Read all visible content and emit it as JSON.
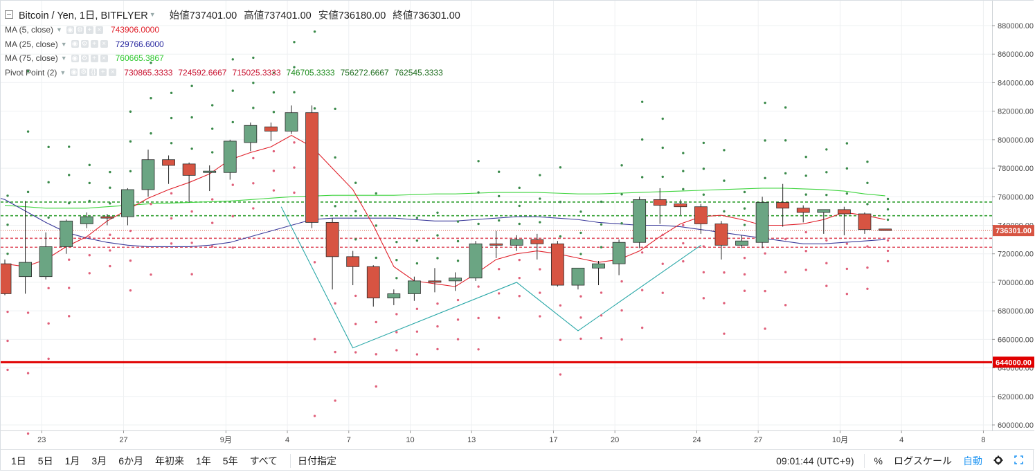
{
  "header": {
    "symbol": "Bitcoin / Yen, 1日, BITFLYER",
    "ohlc": [
      {
        "label": "始値",
        "value": "737401.00"
      },
      {
        "label": "高値",
        "value": "737401.00"
      },
      {
        "label": "安値",
        "value": "736180.00"
      },
      {
        "label": "終値",
        "value": "736301.00"
      }
    ]
  },
  "indicators": [
    {
      "name": "MA (5, close)",
      "values": [
        "743906.0000"
      ],
      "colors": [
        "#e0202a"
      ]
    },
    {
      "name": "MA (25, close)",
      "values": [
        "729766.6000"
      ],
      "colors": [
        "#2b2ba0"
      ]
    },
    {
      "name": "MA (75, close)",
      "values": [
        "760665.3867"
      ],
      "colors": [
        "#2ec82e"
      ]
    },
    {
      "name": "Pivot Point (2)",
      "values": [
        "730865.3333",
        "724592.6667",
        "715025.3333",
        "746705.3333",
        "756272.6667",
        "762545.3333"
      ],
      "colors": [
        "#c8102e",
        "#c8102e",
        "#c8102e",
        "#1a8a1a",
        "#1a6a1a",
        "#1a6a1a"
      ]
    }
  ],
  "colors": {
    "up": "#6ba583",
    "down": "#d75442",
    "ma5": "#e0202a",
    "ma25": "#3a3a9a",
    "ma75": "#3ed43e",
    "support": "#e00000",
    "zigzag": "#2aa8a8"
  },
  "chart_data": {
    "type": "candlestick",
    "x_tick_labels": [
      "23",
      "27",
      "9月",
      "4",
      "7",
      "10",
      "13",
      "17",
      "20",
      "24",
      "27",
      "10月",
      "4",
      "8"
    ],
    "y_tick_labels": [
      "600000.00",
      "620000.00",
      "640000.00",
      "660000.00",
      "680000.00",
      "700000.00",
      "720000.00",
      "740000.00",
      "760000.00",
      "780000.00",
      "800000.00",
      "820000.00",
      "840000.00",
      "860000.00",
      "880000.00"
    ],
    "ylim": [
      595000,
      887000
    ],
    "last_price_label": "736301.00",
    "last_price": 736301,
    "support_label": "644000.00",
    "support_level": 644000,
    "candles": [
      {
        "o": 713000,
        "h": 716000,
        "l": 691000,
        "c": 692000
      },
      {
        "o": 704000,
        "h": 757000,
        "l": 692000,
        "c": 714000
      },
      {
        "o": 704000,
        "h": 735000,
        "l": 702000,
        "c": 725000
      },
      {
        "o": 725000,
        "h": 744000,
        "l": 720000,
        "c": 743000
      },
      {
        "o": 741000,
        "h": 749000,
        "l": 738000,
        "c": 746000
      },
      {
        "o": 746000,
        "h": 748000,
        "l": 740000,
        "c": 745000
      },
      {
        "o": 746000,
        "h": 766000,
        "l": 740000,
        "c": 765000
      },
      {
        "o": 765000,
        "h": 793000,
        "l": 760000,
        "c": 786000
      },
      {
        "o": 786000,
        "h": 789000,
        "l": 769000,
        "c": 782000
      },
      {
        "o": 783000,
        "h": 784000,
        "l": 756000,
        "c": 775000
      },
      {
        "o": 777000,
        "h": 782000,
        "l": 764000,
        "c": 778000
      },
      {
        "o": 777000,
        "h": 800000,
        "l": 772000,
        "c": 799000
      },
      {
        "o": 798000,
        "h": 812000,
        "l": 792000,
        "c": 810000
      },
      {
        "o": 809000,
        "h": 812000,
        "l": 799000,
        "c": 806000
      },
      {
        "o": 806000,
        "h": 824000,
        "l": 804000,
        "c": 819000
      },
      {
        "o": 819000,
        "h": 824000,
        "l": 738000,
        "c": 742000
      },
      {
        "o": 742000,
        "h": 745000,
        "l": 695000,
        "c": 718000
      },
      {
        "o": 718000,
        "h": 722000,
        "l": 698000,
        "c": 711000
      },
      {
        "o": 711000,
        "h": 712000,
        "l": 683000,
        "c": 689000
      },
      {
        "o": 689000,
        "h": 695000,
        "l": 684000,
        "c": 692000
      },
      {
        "o": 692000,
        "h": 704000,
        "l": 687000,
        "c": 701000
      },
      {
        "o": 701000,
        "h": 710000,
        "l": 693000,
        "c": 700000
      },
      {
        "o": 701000,
        "h": 707000,
        "l": 694000,
        "c": 703000
      },
      {
        "o": 703000,
        "h": 729000,
        "l": 701000,
        "c": 727000
      },
      {
        "o": 727000,
        "h": 736000,
        "l": 717000,
        "c": 726000
      },
      {
        "o": 726000,
        "h": 733000,
        "l": 722000,
        "c": 730000
      },
      {
        "o": 730000,
        "h": 734000,
        "l": 716000,
        "c": 727000
      },
      {
        "o": 727000,
        "h": 729000,
        "l": 697000,
        "c": 698000
      },
      {
        "o": 698000,
        "h": 710000,
        "l": 695000,
        "c": 710000
      },
      {
        "o": 710000,
        "h": 715000,
        "l": 698000,
        "c": 713000
      },
      {
        "o": 713000,
        "h": 730000,
        "l": 705000,
        "c": 728000
      },
      {
        "o": 728000,
        "h": 760000,
        "l": 724000,
        "c": 758000
      },
      {
        "o": 758000,
        "h": 766000,
        "l": 741000,
        "c": 754000
      },
      {
        "o": 755000,
        "h": 758000,
        "l": 747000,
        "c": 753000
      },
      {
        "o": 753000,
        "h": 755000,
        "l": 734000,
        "c": 741000
      },
      {
        "o": 741000,
        "h": 743000,
        "l": 716000,
        "c": 726000
      },
      {
        "o": 726000,
        "h": 733000,
        "l": 724000,
        "c": 729000
      },
      {
        "o": 728000,
        "h": 760000,
        "l": 724000,
        "c": 756000
      },
      {
        "o": 756000,
        "h": 769000,
        "l": 739000,
        "c": 752000
      },
      {
        "o": 752000,
        "h": 754000,
        "l": 742000,
        "c": 749000
      },
      {
        "o": 749000,
        "h": 751000,
        "l": 734000,
        "c": 751000
      },
      {
        "o": 751000,
        "h": 753000,
        "l": 733000,
        "c": 748000
      },
      {
        "o": 748000,
        "h": 749000,
        "l": 734000,
        "c": 737000
      },
      {
        "o": 737401,
        "h": 737401,
        "l": 736180,
        "c": 736301
      }
    ],
    "ma5": [
      713000,
      711000,
      716000,
      725000,
      732000,
      743000,
      751000,
      759000,
      765000,
      770000,
      776000,
      786000,
      791000,
      795000,
      803000,
      795000,
      780000,
      765000,
      740000,
      711000,
      701000,
      699000,
      697000,
      706000,
      716000,
      720000,
      722000,
      720000,
      717000,
      714000,
      716000,
      722000,
      732000,
      741000,
      746000,
      747000,
      744000,
      740000,
      740000,
      741000,
      744000,
      749000,
      747000,
      744000
    ],
    "ma25": [
      758000,
      750000,
      742000,
      735000,
      731000,
      728000,
      726000,
      725000,
      725000,
      725000,
      726000,
      728000,
      732000,
      736000,
      740000,
      744000,
      745000,
      745000,
      745000,
      745000,
      744000,
      743000,
      743000,
      744000,
      745000,
      746000,
      746000,
      745000,
      744000,
      742000,
      741000,
      740000,
      740000,
      739000,
      737000,
      735000,
      733000,
      731000,
      729000,
      727000,
      727000,
      728000,
      729000,
      730000
    ],
    "ma75": [
      754000,
      753000,
      752000,
      752000,
      752000,
      753000,
      754000,
      755000,
      755500,
      756000,
      756500,
      757000,
      758000,
      759000,
      760000,
      760500,
      761000,
      761000,
      761000,
      761000,
      761500,
      762000,
      762000,
      762500,
      763000,
      763000,
      763000,
      762500,
      762000,
      762000,
      762500,
      763000,
      763500,
      764000,
      764500,
      765000,
      765500,
      766000,
      766000,
      765500,
      765000,
      764000,
      762000,
      760665
    ],
    "ma25_lead": [
      {
        "x": -0.5,
        "y": 760000
      }
    ],
    "zigzag": [
      [
        13.5,
        753000
      ],
      [
        17,
        654000
      ],
      [
        25,
        700000
      ],
      [
        28,
        666000
      ],
      [
        34,
        726000
      ]
    ],
    "pivot_lines": [
      {
        "y": 756272,
        "color": "#2e9e2e"
      },
      {
        "y": 746705,
        "color": "#2e9e2e"
      },
      {
        "y": 730865,
        "color": "#e05060"
      },
      {
        "y": 724592,
        "color": "#e05060"
      }
    ]
  },
  "toolbar": {
    "ranges": [
      "1日",
      "5日",
      "1月",
      "3月",
      "6か月",
      "年初来",
      "1年",
      "5年",
      "すべて"
    ],
    "date_label": "日付指定",
    "clock": "09:01:44 (UTC+9)",
    "percent": "%",
    "log": "ログスケール",
    "auto": "自動"
  }
}
